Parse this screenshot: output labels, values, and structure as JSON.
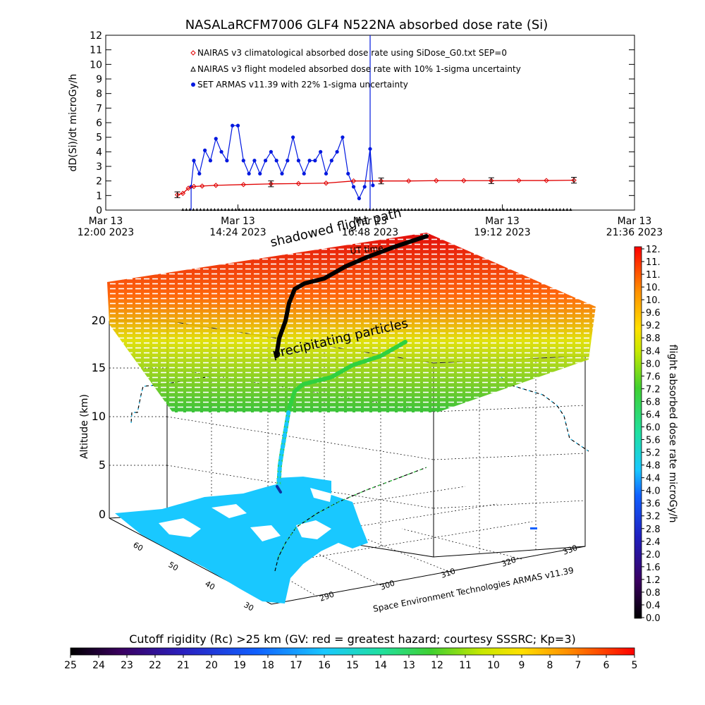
{
  "colors": {
    "nairas_clim": "#e00000",
    "nairas_flight": "#000000",
    "armas": "#0018e0",
    "colorscale": [
      "#000000",
      "#3a0060",
      "#2020c0",
      "#1860ff",
      "#19c0ff",
      "#20e0a0",
      "#30d040",
      "#a0e000",
      "#ffff00",
      "#ffa000",
      "#ff4000",
      "#ff0000"
    ]
  },
  "chart_data": [
    {
      "type": "line",
      "title": "NASALaRCFM7006  GLF4 N522NA absorbed dose rate (Si)",
      "ylabel": "dD(Si)/dt microGy/h",
      "ylim": [
        0,
        12
      ],
      "yticks": [
        "0",
        "1",
        "2",
        "3",
        "4",
        "5",
        "6",
        "7",
        "8",
        "9",
        "10",
        "11",
        "12"
      ],
      "xticks": [
        {
          "date": "Mar 13",
          "time": "12:00 2023",
          "hours": 12.0
        },
        {
          "date": "Mar 13",
          "time": "14:24 2023",
          "hours": 14.4
        },
        {
          "date": "Mar 13",
          "time": "16:48 2023",
          "hours": 16.8
        },
        {
          "date": "Mar 13",
          "time": "19:12 2023",
          "hours": 19.2
        },
        {
          "date": "Mar 13",
          "time": "21:36 2023",
          "hours": 21.6
        }
      ],
      "xlim_hours": [
        12.0,
        21.6
      ],
      "marker_line_hours": 16.8,
      "legend": [
        "NAIRAS v3 climatological absorbed dose rate using SiDose_G0.txt SEP=0",
        "NAIRAS v3 flight modeled absorbed dose rate with 10% 1-sigma uncertainty",
        "SET ARMAS v11.39 with 22% 1-sigma uncertainty"
      ],
      "series": [
        {
          "name": "NAIRAS v3 climatological absorbed dose rate using SiDose_G0.txt SEP=0",
          "x_hours": [
            13.3,
            13.4,
            13.5,
            13.6,
            13.75,
            14.0,
            14.5,
            15.0,
            15.5,
            16.0,
            16.5,
            17.0,
            17.5,
            18.0,
            18.5,
            19.0,
            19.5,
            20.0,
            20.5
          ],
          "values": [
            1.05,
            1.15,
            1.5,
            1.62,
            1.65,
            1.7,
            1.75,
            1.8,
            1.82,
            1.85,
            2.0,
            2.0,
            2.0,
            2.02,
            2.02,
            2.02,
            2.03,
            2.03,
            2.05
          ]
        },
        {
          "name": "NAIRAS v3 flight modeled absorbed dose rate with 10% 1-sigma uncertainty",
          "x_hours": [
            13.4,
            20.5
          ],
          "values": [
            0.0,
            0.0
          ]
        },
        {
          "name": "SET ARMAS v11.39 with 22% 1-sigma uncertainty",
          "x_hours": [
            13.55,
            13.6,
            13.7,
            13.8,
            13.9,
            14.0,
            14.1,
            14.2,
            14.3,
            14.4,
            14.5,
            14.6,
            14.7,
            14.8,
            14.9,
            15.0,
            15.1,
            15.2,
            15.3,
            15.4,
            15.5,
            15.6,
            15.7,
            15.8,
            15.9,
            16.0,
            16.1,
            16.2,
            16.3,
            16.4,
            16.5,
            16.6,
            16.7,
            16.8,
            16.85
          ],
          "values": [
            1.6,
            3.4,
            2.5,
            4.1,
            3.4,
            4.9,
            4.0,
            3.4,
            5.8,
            5.8,
            3.4,
            2.5,
            3.4,
            2.5,
            3.4,
            4.0,
            3.4,
            2.5,
            3.4,
            5.0,
            3.4,
            2.5,
            3.4,
            3.4,
            4.0,
            2.5,
            3.4,
            4.0,
            5.0,
            2.5,
            1.6,
            0.8,
            1.6,
            4.2,
            1.7
          ]
        }
      ]
    },
    {
      "type": "scatter",
      "annotations": [
        "shadowed flight path",
        "UT time",
        "precipitating particles"
      ],
      "zlabel": "Altitude (km)",
      "zticks": [
        "0",
        "5",
        "10",
        "15",
        "20"
      ],
      "lat_ticks": [
        "60",
        "50",
        "40",
        "30"
      ],
      "lon_ticks": [
        "290",
        "300",
        "310",
        "320",
        "330"
      ],
      "credit": "Space Environment Technologies ARMAS v11.39",
      "colorbar": {
        "label": "flight absorbed dose rate microGy/h",
        "ticks": [
          "12.",
          "11.",
          "11.",
          "10.",
          "10.",
          "9.6",
          "9.2",
          "8.8",
          "8.4",
          "8.0",
          "7.6",
          "7.2",
          "6.8",
          "6.4",
          "6.0",
          "5.6",
          "5.2",
          "4.8",
          "4.4",
          "4.0",
          "3.6",
          "3.2",
          "2.8",
          "2.4",
          "2.0",
          "1.6",
          "1.2",
          "0.8",
          "0.4",
          "0.0"
        ]
      }
    },
    {
      "type": "heatmap",
      "title": "Cutoff rigidity (Rc) >25 km (GV: red = greatest hazard; courtesy SSSRC; Kp=3)",
      "ticks": [
        "25",
        "24",
        "23",
        "22",
        "21",
        "20",
        "19",
        "18",
        "17",
        "16",
        "15",
        "14",
        "13",
        "12",
        "11",
        "10",
        "9",
        "8",
        "7",
        "6",
        "5"
      ]
    }
  ]
}
